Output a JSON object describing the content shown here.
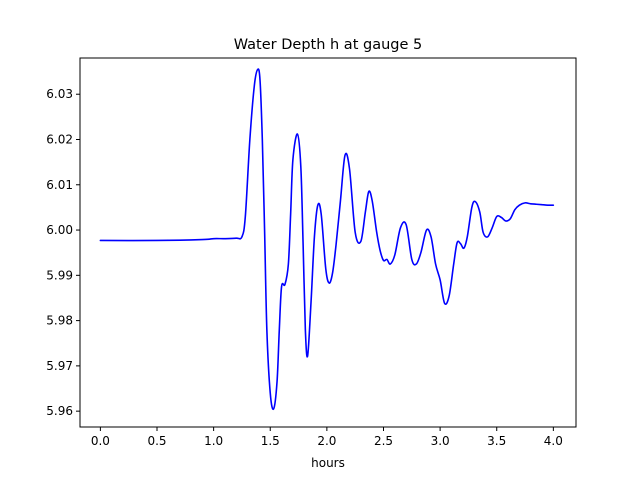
{
  "chart_data": {
    "type": "line",
    "title": "Water Depth h at gauge 5",
    "xlabel": "hours",
    "ylabel": "",
    "xlim": [
      -0.18,
      4.2
    ],
    "ylim": [
      5.9565,
      6.038
    ],
    "xticks": [
      0.0,
      0.5,
      1.0,
      1.5,
      2.0,
      2.5,
      3.0,
      3.5,
      4.0
    ],
    "xtick_labels": [
      "0.0",
      "0.5",
      "1.0",
      "1.5",
      "2.0",
      "2.5",
      "3.0",
      "3.5",
      "4.0"
    ],
    "yticks": [
      5.96,
      5.97,
      5.98,
      5.99,
      6.0,
      6.01,
      6.02,
      6.03
    ],
    "ytick_labels": [
      "5.96",
      "5.97",
      "5.98",
      "5.99",
      "6.00",
      "6.01",
      "6.02",
      "6.03"
    ],
    "grid": false,
    "series": [
      {
        "color": "#0000ff",
        "x": [
          0.0,
          0.5,
          0.9,
          1.0,
          1.1,
          1.2,
          1.25,
          1.28,
          1.32,
          1.36,
          1.39,
          1.41,
          1.43,
          1.45,
          1.47,
          1.5,
          1.53,
          1.56,
          1.58,
          1.6,
          1.63,
          1.66,
          1.68,
          1.7,
          1.74,
          1.77,
          1.79,
          1.81,
          1.83,
          1.86,
          1.89,
          1.92,
          1.95,
          1.99,
          2.02,
          2.05,
          2.08,
          2.12,
          2.16,
          2.2,
          2.25,
          2.3,
          2.34,
          2.37,
          2.4,
          2.44,
          2.47,
          2.5,
          2.53,
          2.56,
          2.6,
          2.65,
          2.7,
          2.75,
          2.79,
          2.83,
          2.88,
          2.92,
          2.96,
          3.0,
          3.04,
          3.08,
          3.12,
          3.15,
          3.18,
          3.21,
          3.24,
          3.28,
          3.31,
          3.35,
          3.38,
          3.42,
          3.46,
          3.5,
          3.54,
          3.58,
          3.62,
          3.66,
          3.7,
          3.75,
          3.8,
          3.85,
          3.9,
          3.95,
          4.0
        ],
        "y": [
          5.9977,
          5.9977,
          5.9979,
          5.9981,
          5.9981,
          5.9982,
          5.9985,
          6.003,
          6.02,
          6.032,
          6.0355,
          6.033,
          6.02,
          6.0,
          5.978,
          5.964,
          5.9605,
          5.9665,
          5.978,
          5.9875,
          5.988,
          5.9925,
          6.0035,
          6.0155,
          6.0212,
          6.014,
          5.997,
          5.978,
          5.9722,
          5.984,
          5.9985,
          6.0055,
          6.0035,
          5.9915,
          5.9883,
          5.9905,
          5.9965,
          6.0065,
          6.0165,
          6.0135,
          5.9995,
          5.9975,
          6.004,
          6.0085,
          6.0065,
          5.9995,
          5.9955,
          5.9933,
          5.9935,
          5.9925,
          5.9945,
          6.0005,
          6.0012,
          5.9935,
          5.9925,
          5.995,
          6.0,
          5.9985,
          5.9925,
          5.989,
          5.9838,
          5.9855,
          5.9925,
          5.9972,
          5.997,
          5.996,
          5.9985,
          6.005,
          6.0063,
          6.004,
          5.9995,
          5.9985,
          6.0005,
          6.003,
          6.0028,
          6.002,
          6.0025,
          6.0045,
          6.0055,
          6.006,
          6.0058,
          6.0057,
          6.0056,
          6.0055,
          6.0055
        ]
      }
    ]
  }
}
